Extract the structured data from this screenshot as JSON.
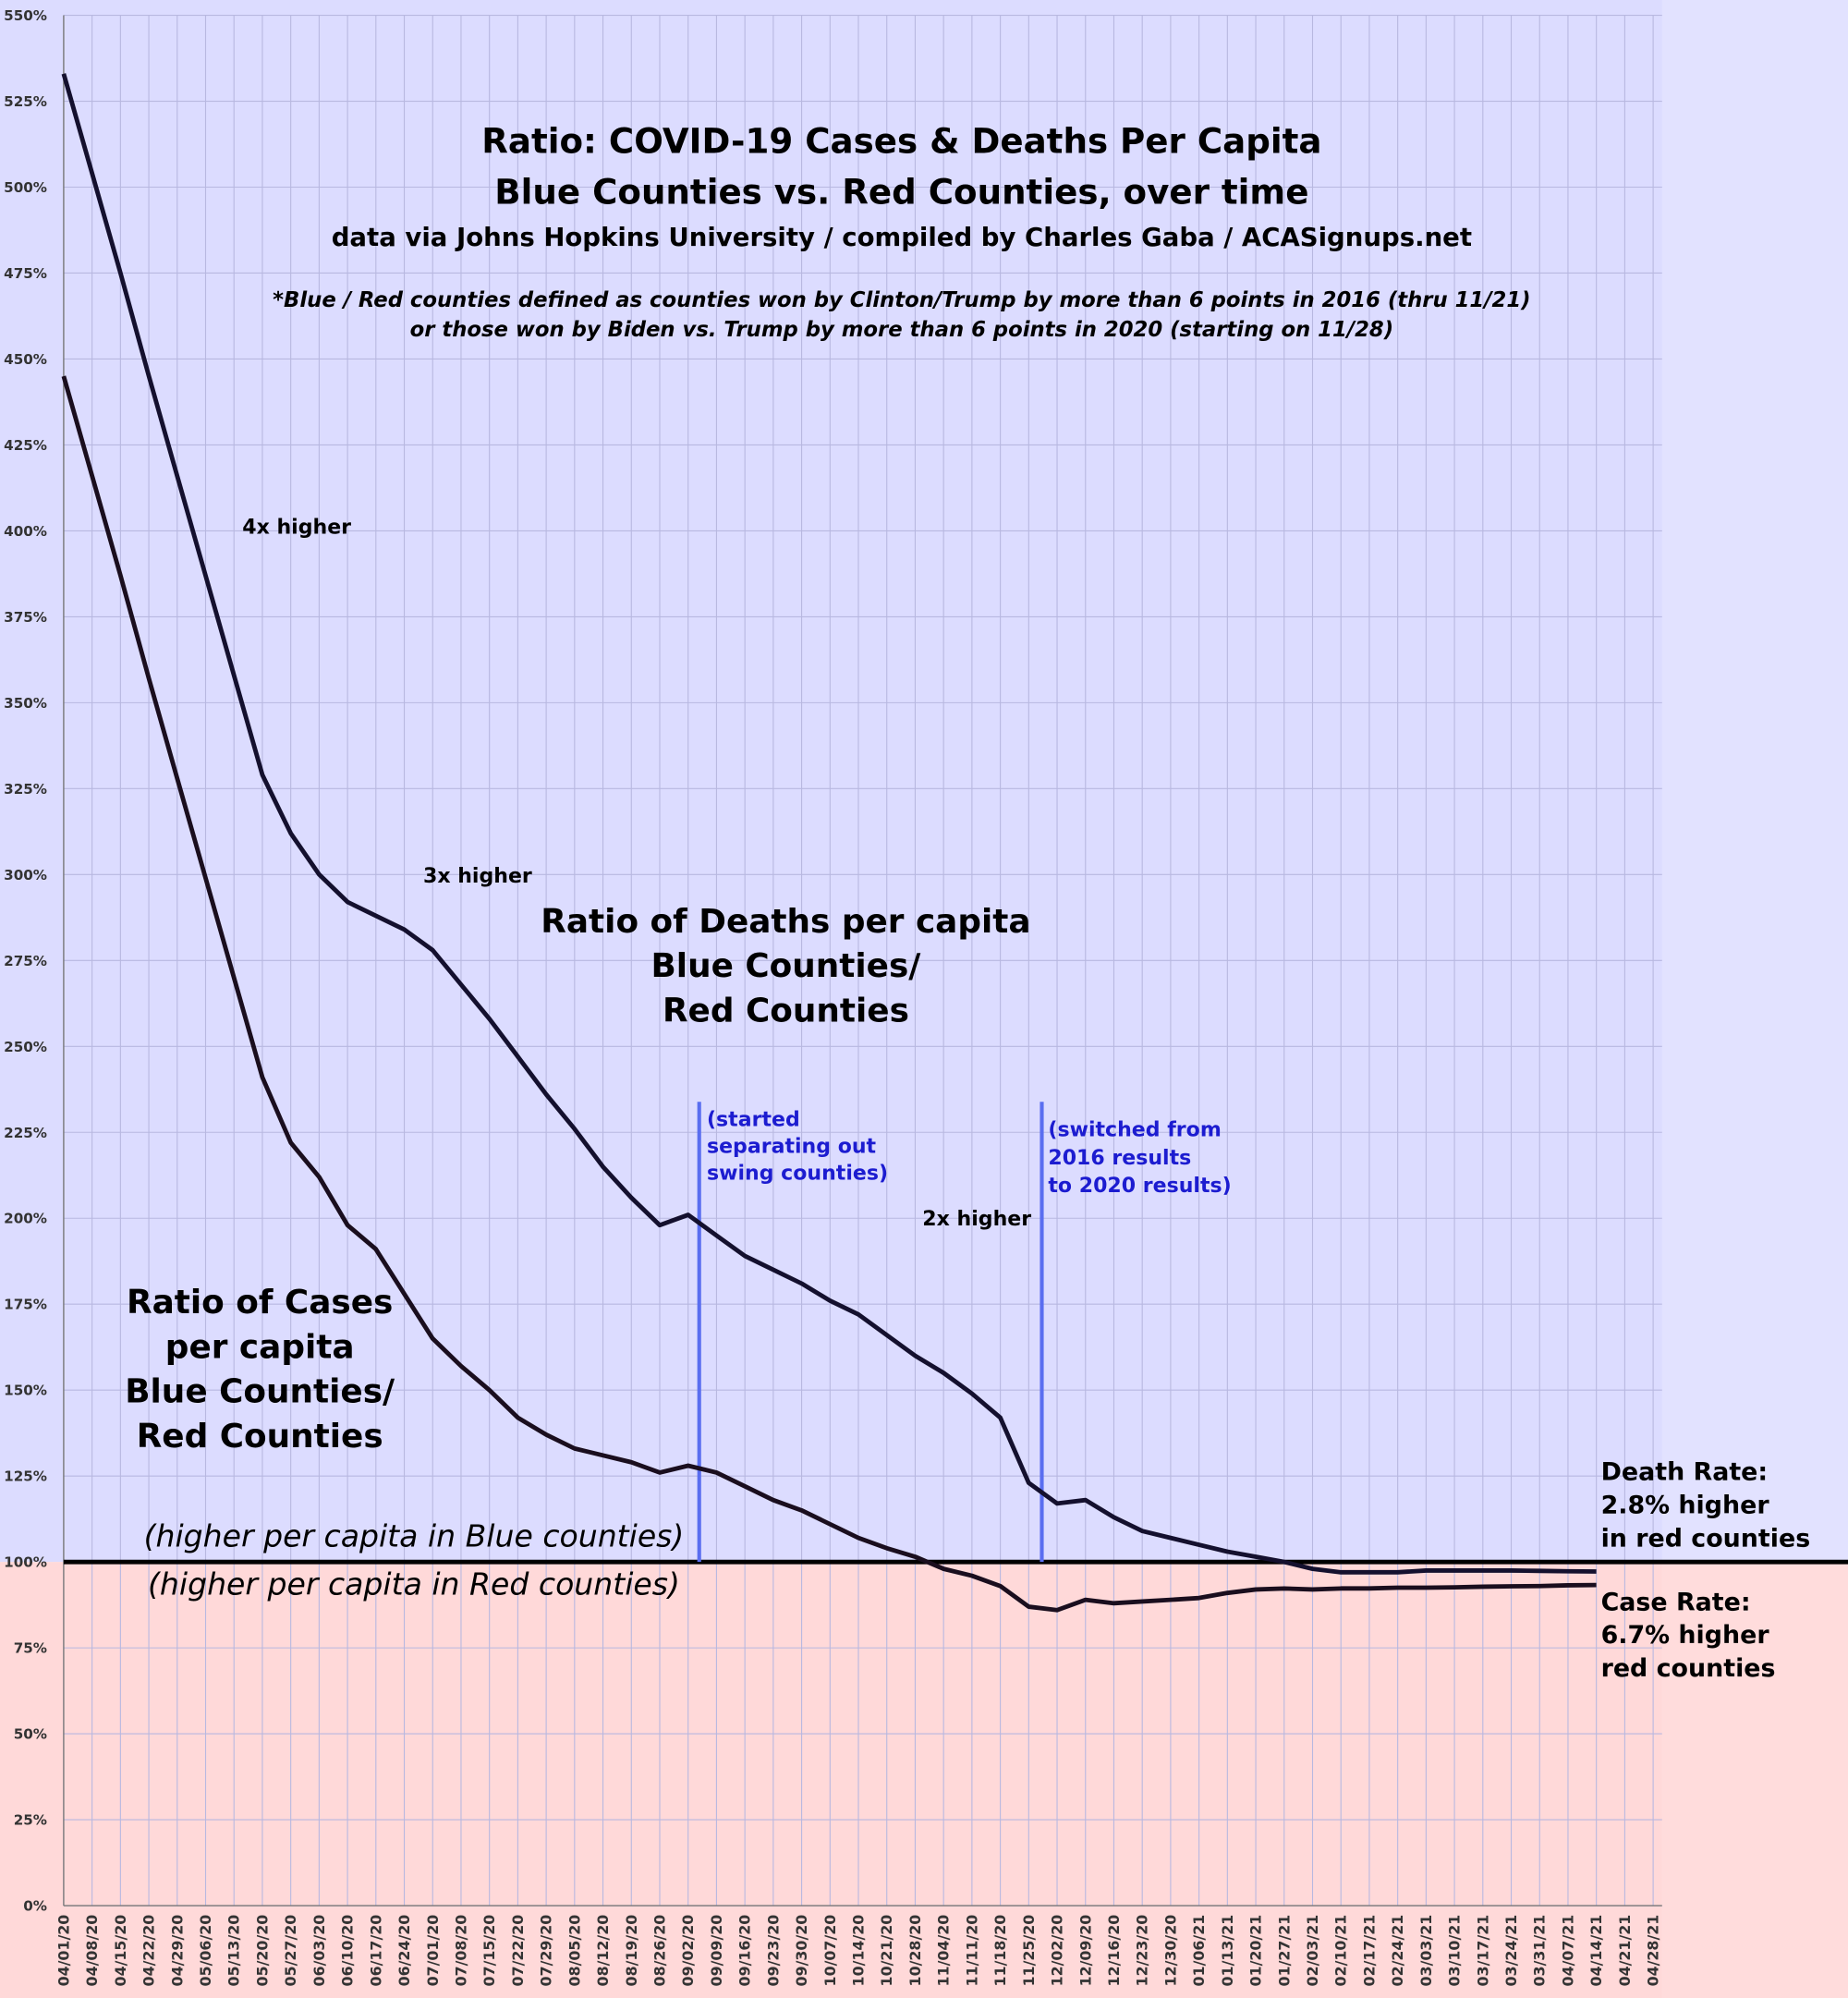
{
  "chart_data": {
    "type": "line",
    "title": [
      "Ratio: COVID-19 Cases & Deaths Per Capita",
      "Blue Counties vs. Red Counties, over time"
    ],
    "subtitle": "data via Johns Hopkins University / compiled by Charles Gaba / ACASignups.net",
    "note": [
      "*Blue / Red counties defined as counties won by Clinton/Trump by more than 6 points in 2016 (thru 11/21)",
      "or those won by Biden vs. Trump by more than 6 points in 2020 (starting on 11/28)"
    ],
    "categories": [
      "04/01/20",
      "04/08/20",
      "04/15/20",
      "04/22/20",
      "04/29/20",
      "05/06/20",
      "05/13/20",
      "05/20/20",
      "05/27/20",
      "06/03/20",
      "06/10/20",
      "06/17/20",
      "06/24/20",
      "07/01/20",
      "07/08/20",
      "07/15/20",
      "07/22/20",
      "07/29/20",
      "08/05/20",
      "08/12/20",
      "08/19/20",
      "08/26/20",
      "09/02/20",
      "09/09/20",
      "09/16/20",
      "09/23/20",
      "09/30/20",
      "10/07/20",
      "10/14/20",
      "10/21/20",
      "10/28/20",
      "11/04/20",
      "11/11/20",
      "11/18/20",
      "11/25/20",
      "12/02/20",
      "12/09/20",
      "12/16/20",
      "12/23/20",
      "12/30/20",
      "01/06/21",
      "01/13/21",
      "01/20/21",
      "01/27/21",
      "02/03/21",
      "02/10/21",
      "02/17/21",
      "02/24/21",
      "03/03/21",
      "03/10/21",
      "03/17/21",
      "03/24/21",
      "03/31/21",
      "04/07/21",
      "04/14/21",
      "04/21/21",
      "04/28/21"
    ],
    "series": [
      {
        "name": "Ratio of Deaths per capita Blue Counties/Red Counties",
        "color": "#14102e",
        "values": [
          533,
          504,
          475,
          445,
          416,
          387,
          358,
          329,
          312,
          300,
          292,
          288,
          284,
          278,
          268,
          258,
          247,
          236,
          226,
          215,
          206,
          198,
          201,
          195,
          189,
          185,
          181,
          176,
          172,
          166,
          160,
          155,
          149,
          142,
          123,
          117,
          118,
          113,
          109,
          107,
          105,
          103,
          101.5,
          100,
          98,
          97,
          97,
          97,
          97.5,
          97.5,
          97.5,
          97.5,
          97.4,
          97.3,
          97.2,
          null,
          null
        ]
      },
      {
        "name": "Ratio of Cases per capita Blue Counties/Red Counties",
        "color": "#1a0e1e",
        "values": [
          445,
          416,
          387,
          357,
          328,
          299,
          270,
          241,
          222,
          212,
          198,
          191,
          178,
          165,
          157,
          150,
          142,
          137,
          133,
          131,
          129,
          126,
          128,
          126,
          122,
          118,
          115,
          111,
          107,
          104,
          101.5,
          98,
          96,
          93,
          87,
          86,
          89,
          88,
          88.5,
          89,
          89.5,
          91,
          92,
          92.3,
          92,
          92.3,
          92.3,
          92.5,
          92.5,
          92.6,
          92.8,
          92.9,
          93,
          93.2,
          93.3,
          null,
          null
        ]
      }
    ],
    "ylim": [
      0,
      550
    ],
    "yticks": [
      {
        "value": 0,
        "label": "0%"
      },
      {
        "value": 25,
        "label": "25%"
      },
      {
        "value": 50,
        "label": "50%"
      },
      {
        "value": 75,
        "label": "75%"
      },
      {
        "value": 100,
        "label": "100%"
      },
      {
        "value": 125,
        "label": "125%"
      },
      {
        "value": 150,
        "label": "150%"
      },
      {
        "value": 175,
        "label": "175%"
      },
      {
        "value": 200,
        "label": "200%"
      },
      {
        "value": 225,
        "label": "225%"
      },
      {
        "value": 250,
        "label": "250%"
      },
      {
        "value": 275,
        "label": "275%"
      },
      {
        "value": 300,
        "label": "300%"
      },
      {
        "value": 325,
        "label": "325%"
      },
      {
        "value": 350,
        "label": "350%"
      },
      {
        "value": 375,
        "label": "375%"
      },
      {
        "value": 400,
        "label": "400%"
      },
      {
        "value": 425,
        "label": "425%"
      },
      {
        "value": 450,
        "label": "450%"
      },
      {
        "value": 475,
        "label": "475%"
      },
      {
        "value": 500,
        "label": "500%"
      },
      {
        "value": 525,
        "label": "525%"
      },
      {
        "value": 550,
        "label": "550%"
      }
    ],
    "grid": true,
    "baseline": 100,
    "annotations": [
      {
        "lines": [
          "4x higher"
        ]
      },
      {
        "lines": [
          "3x higher"
        ]
      },
      {
        "lines": [
          "2x higher"
        ]
      },
      {
        "lines": [
          "Ratio of Deaths per capita",
          "Blue Counties/",
          "Red Counties"
        ]
      },
      {
        "lines": [
          "Ratio of Cases",
          "per capita",
          "Blue Counties/",
          "Red Counties"
        ]
      },
      {
        "lines": [
          "(higher per capita in Blue counties)"
        ]
      },
      {
        "lines": [
          "(higher per capita in Red counties)"
        ]
      },
      {
        "lines": [
          "(started",
          "separating out",
          "swing counties)"
        ]
      },
      {
        "lines": [
          "(switched from",
          "2016 results",
          "to 2020 results)"
        ]
      },
      {
        "lines": [
          "Death Rate:",
          "2.8% higher",
          "in red counties"
        ]
      },
      {
        "lines": [
          "Case Rate:",
          "6.7% higher",
          "red counties"
        ]
      }
    ]
  }
}
